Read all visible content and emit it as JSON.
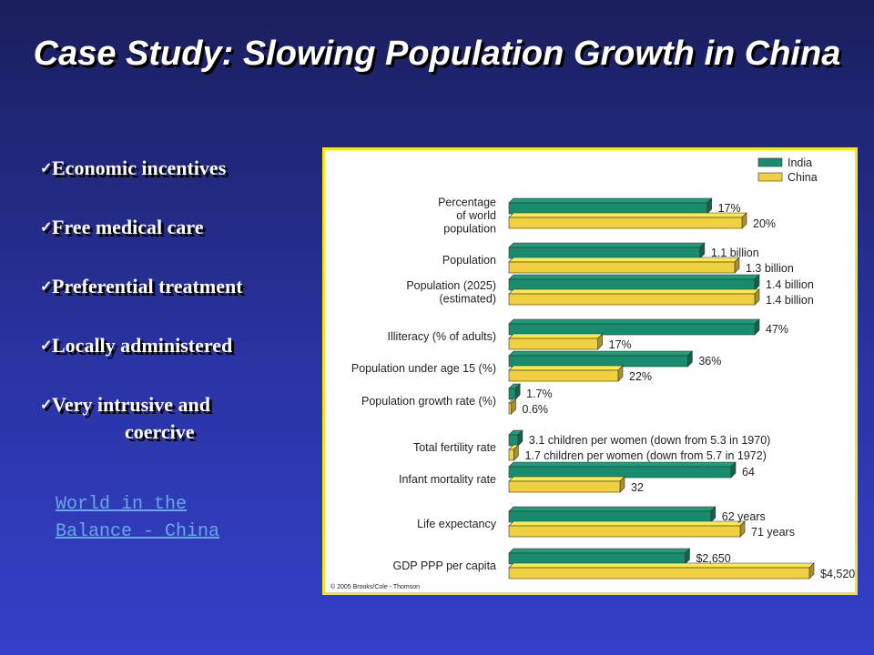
{
  "slide": {
    "title": "Case Study:  Slowing Population Growth in China",
    "bullets": [
      {
        "text": "Economic incentives"
      },
      {
        "text": "Free medical care"
      },
      {
        "text": "Preferential treatment"
      },
      {
        "text": "Locally administered"
      },
      {
        "text": "Very intrusive and",
        "continuation": "coercive"
      }
    ],
    "check_glyph": "✓",
    "link": {
      "line1": "World in the",
      "line2": "Balance - China"
    },
    "colors": {
      "india": "#1a8c6e",
      "china": "#f0d040",
      "frame": "#f4e71a",
      "link": "#6aa7e6"
    }
  },
  "chart_data": {
    "type": "bar",
    "orientation": "horizontal",
    "legend": [
      "India",
      "China"
    ],
    "legend_position": "top-right",
    "copyright": "© 2005 Brooks/Cole - Thomson",
    "rows": [
      {
        "label": [
          "Percentage",
          "of world",
          "population"
        ],
        "india": 17,
        "china": 20,
        "india_text": "17%",
        "china_text": "20%"
      },
      {
        "label": [
          "Population"
        ],
        "india": 1.1,
        "china": 1.3,
        "india_text": "1.1 billion",
        "china_text": "1.3 billion"
      },
      {
        "label": [
          "Population (2025)",
          "(estimated)"
        ],
        "india": 1.4,
        "china": 1.4,
        "india_text": "1.4 billion",
        "china_text": "1.4 billion"
      },
      {
        "label": [
          "Illiteracy (% of adults)"
        ],
        "india": 47,
        "china": 17,
        "india_text": "47%",
        "china_text": "17%"
      },
      {
        "label": [
          "Population under age 15 (%)"
        ],
        "india": 36,
        "china": 22,
        "india_text": "36%",
        "china_text": "22%"
      },
      {
        "label": [
          "Population growth rate (%)"
        ],
        "india": 1.7,
        "china": 0.6,
        "india_text": "1.7%",
        "china_text": "0.6%"
      },
      {
        "label": [
          "Total fertility rate"
        ],
        "india": 3.1,
        "china": 1.7,
        "india_text": "3.1 children per women (down from 5.3 in 1970)",
        "china_text": "1.7 children per women (down from 5.7 in 1972)"
      },
      {
        "label": [
          "Infant mortality rate"
        ],
        "india": 64,
        "china": 32,
        "india_text": "64",
        "china_text": "32"
      },
      {
        "label": [
          "Life expectancy"
        ],
        "india": 62,
        "china": 71,
        "india_text": "62 years",
        "china_text": "71 years"
      },
      {
        "label": [
          "GDP PPP per capita"
        ],
        "india": 2650,
        "china": 4520,
        "india_text": "$2,650",
        "china_text": "$4,520"
      }
    ]
  }
}
